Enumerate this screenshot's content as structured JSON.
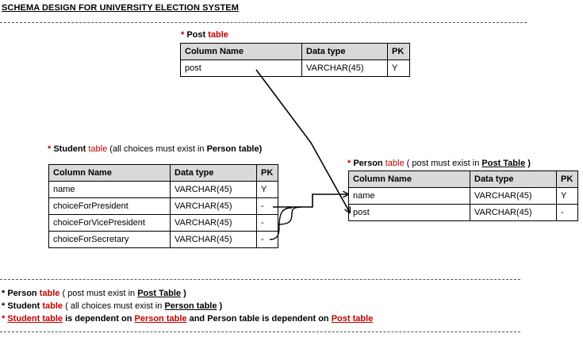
{
  "title": "SCHEMA DESIGN FOR UNIVERSITY ELECTION SYSTEM",
  "star": "*",
  "post_table": {
    "caption_name": "Post",
    "caption_suffix": "table",
    "headers": [
      "Column Name",
      "Data type",
      "PK"
    ],
    "rows": [
      [
        "post",
        "VARCHAR(45)",
        "Y"
      ]
    ]
  },
  "student_table": {
    "caption_name": "Student",
    "caption_suffix": "table",
    "caption_note_pre": "(all choices must exist in",
    "caption_note_ref": "Person table",
    "caption_note_post": ")",
    "headers": [
      "Column Name",
      "Data type",
      "PK"
    ],
    "rows": [
      [
        "name",
        "VARCHAR(45)",
        "Y"
      ],
      [
        "choiceForPresident",
        "VARCHAR(45)",
        "-"
      ],
      [
        "choiceForVicePresident",
        "VARCHAR(45)",
        "-"
      ],
      [
        "choiceForSecretary",
        "VARCHAR(45)",
        "-"
      ]
    ]
  },
  "person_table": {
    "caption_name": "Person",
    "caption_suffix": "table",
    "caption_note_pre": "( post must exist in",
    "caption_note_ref": "Post Table",
    "caption_note_post": ")",
    "headers": [
      "Column Name",
      "Data type",
      "PK"
    ],
    "rows": [
      [
        "name",
        "VARCHAR(45)",
        "Y"
      ],
      [
        "post",
        "VARCHAR(45)",
        "-"
      ]
    ]
  },
  "notes": {
    "n1": {
      "name": "Person",
      "suffix": "table",
      "pre": "( post must exist in",
      "ref": "Post Table",
      "post": ")"
    },
    "n2": {
      "name": "Student",
      "suffix": "table",
      "pre": "( all choices must exist in",
      "ref": "Person table",
      "post": ")"
    },
    "n3": {
      "a": "Student table",
      "t1": "is dependent on",
      "b": "Person table",
      "and": "and",
      "c": "Person table",
      "t2": "is dependent on",
      "d": "Post table"
    }
  },
  "colors": {
    "accent": "#c00000",
    "header_bg": "#d9d9d9"
  }
}
